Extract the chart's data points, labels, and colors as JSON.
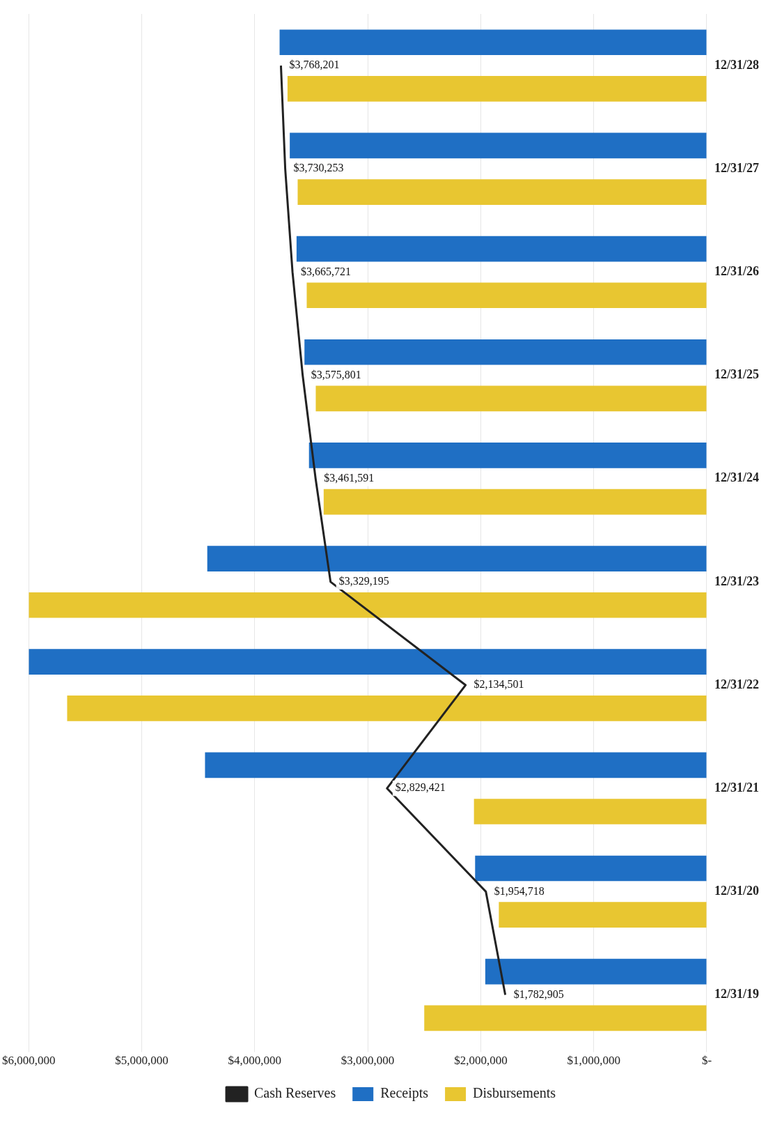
{
  "chart_data": {
    "type": "bar",
    "orientation": "horizontal",
    "categories": [
      "12/31/28",
      "12/31/27",
      "12/31/26",
      "12/31/25",
      "12/31/24",
      "12/31/23",
      "12/31/22",
      "12/31/21",
      "12/31/20",
      "12/31/19"
    ],
    "series": [
      {
        "name": "Receipts",
        "color": "#1f6fc4",
        "values": [
          3780000,
          3690000,
          3630000,
          3560000,
          3520000,
          4420000,
          6000000,
          4440000,
          2050000,
          1960000
        ]
      },
      {
        "name": "Disbursements",
        "color": "#e8c631",
        "values": [
          3710000,
          3620000,
          3540000,
          3460000,
          3390000,
          6000000,
          5660000,
          2060000,
          1840000,
          2500000
        ]
      },
      {
        "name": "Cash Reserves",
        "type": "line",
        "color": "#222222",
        "values": [
          3768201,
          3730253,
          3665721,
          3575801,
          3461591,
          3329195,
          2134501,
          2829421,
          1954718,
          1782905
        ],
        "value_labels": [
          "$3,768,201",
          "$3,730,253",
          "$3,665,721",
          "$3,575,801",
          "$3,461,591",
          "$3,329,195",
          "$2,134,501",
          "$2,829,421",
          "$1,954,718",
          "$1,782,905"
        ]
      }
    ],
    "xlim": [
      6000000,
      0
    ],
    "xticks": [
      {
        "value": 6000000,
        "label": "$6,000,000"
      },
      {
        "value": 5000000,
        "label": "$5,000,000"
      },
      {
        "value": 4000000,
        "label": "$4,000,000"
      },
      {
        "value": 3000000,
        "label": "$3,000,000"
      },
      {
        "value": 2000000,
        "label": "$2,000,000"
      },
      {
        "value": 1000000,
        "label": "$1,000,000"
      },
      {
        "value": 0,
        "label": "$-"
      }
    ],
    "grid": "x",
    "legend": "bottom",
    "marker": "none"
  }
}
